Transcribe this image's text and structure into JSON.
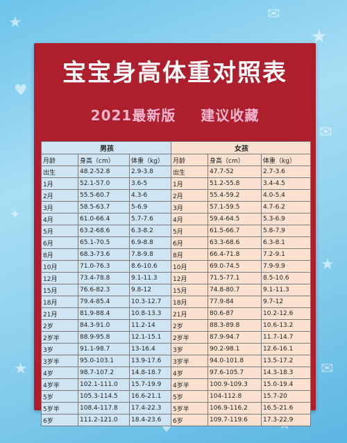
{
  "page": {
    "title": "宝宝身高体重对照表",
    "edition": "2021最新版",
    "tagline": "建议收藏"
  },
  "table": {
    "groups": [
      "男孩",
      "女孩"
    ],
    "headers": {
      "boy": [
        "月龄",
        "身高（cm）",
        "体重（kg）"
      ],
      "girl": [
        "月龄",
        "身高（cm）",
        "体重（kg）"
      ]
    },
    "rows": [
      {
        "boy_age": "出生",
        "boy_height": "48.2-52.8",
        "boy_weight": "2.9-3.8",
        "girl_age": "出生",
        "girl_height": "47.7-52",
        "girl_weight": "2.7-3.6"
      },
      {
        "boy_age": "1月",
        "boy_height": "52.1-57.0",
        "boy_weight": "3.6-5",
        "girl_age": "1月",
        "girl_height": "51.2-55.8",
        "girl_weight": "3.4-4.5"
      },
      {
        "boy_age": "2月",
        "boy_height": "55.5-60.7",
        "boy_weight": "4.3-6",
        "girl_age": "2月",
        "girl_height": "55.4-59.2",
        "girl_weight": "4.0-5.4"
      },
      {
        "boy_age": "3月",
        "boy_height": "58.5-63.7",
        "boy_weight": "5-6.9",
        "girl_age": "3月",
        "girl_height": "57.1-59.5",
        "girl_weight": "4.7-6.2"
      },
      {
        "boy_age": "4月",
        "boy_height": "61.0-66.4",
        "boy_weight": "5.7-7.6",
        "girl_age": "4月",
        "girl_height": "59.4-64.5",
        "girl_weight": "5.3-6.9"
      },
      {
        "boy_age": "5月",
        "boy_height": "63.2-68.6",
        "boy_weight": "6.3-8.2",
        "girl_age": "5月",
        "girl_height": "61.5-66.7",
        "girl_weight": "5.8-7.9"
      },
      {
        "boy_age": "6月",
        "boy_height": "65.1-70.5",
        "boy_weight": "6.9-8.8",
        "girl_age": "6月",
        "girl_height": "63.3-68.6",
        "girl_weight": "6.3-8.1"
      },
      {
        "boy_age": "8月",
        "boy_height": "68.3-73.6",
        "boy_weight": "7.8-9.8",
        "girl_age": "8月",
        "girl_height": "66.4-71.8",
        "girl_weight": "7.2-9.1"
      },
      {
        "boy_age": "10月",
        "boy_height": "71.0-76.3",
        "boy_weight": "8.6-10.6",
        "girl_age": "10月",
        "girl_height": "69.0-74.5",
        "girl_weight": "7.9-9.9"
      },
      {
        "boy_age": "12月",
        "boy_height": "73.4-78.8",
        "boy_weight": "9.1-11.3",
        "girl_age": "12月",
        "girl_height": "71.5-77.1",
        "girl_weight": "8.5-10.6"
      },
      {
        "boy_age": "15月",
        "boy_height": "76.6-82.3",
        "boy_weight": "9.8-12",
        "girl_age": "15月",
        "girl_height": "74.8-80.7",
        "girl_weight": "9.1-11.3"
      },
      {
        "boy_age": "18月",
        "boy_height": "79.4-85.4",
        "boy_weight": "10.3-12.7",
        "girl_age": "18月",
        "girl_height": "77.9-84",
        "girl_weight": "9.7-12"
      },
      {
        "boy_age": "21月",
        "boy_height": "81.9-88.4",
        "boy_weight": "10.8-13.3",
        "girl_age": "21月",
        "girl_height": "80.6-87",
        "girl_weight": "10.2-12.6"
      },
      {
        "boy_age": "2岁",
        "boy_height": "84.3-91.0",
        "boy_weight": "11.2-14",
        "girl_age": "2岁",
        "girl_height": "88.3-89.8",
        "girl_weight": "10.6-13.2"
      },
      {
        "boy_age": "2岁半",
        "boy_height": "88.9-95.8",
        "boy_weight": "12.1-15.1",
        "girl_age": "2岁半",
        "girl_height": "87.9-94.7",
        "girl_weight": "11.7-14.7"
      },
      {
        "boy_age": "3岁",
        "boy_height": "91.1-98.7",
        "boy_weight": "13-16.4",
        "girl_age": "3岁",
        "girl_height": "90.2-98.1",
        "girl_weight": "12.6-16.1"
      },
      {
        "boy_age": "3岁半",
        "boy_height": "95.0-103.1",
        "boy_weight": "13.9-17.6",
        "girl_age": "3岁半",
        "girl_height": "94.0-101.8",
        "girl_weight": "13.5-17.2"
      },
      {
        "boy_age": "4岁",
        "boy_height": "98.7-107.2",
        "boy_weight": "14.8-18.7",
        "girl_age": "4岁",
        "girl_height": "97.6-105.7",
        "girl_weight": "14.3-18.3"
      },
      {
        "boy_age": "4岁半",
        "boy_height": "102.1-111.0",
        "boy_weight": "15.7-19.9",
        "girl_age": "4岁半",
        "girl_height": "100.9-109.3",
        "girl_weight": "15.0-19.4"
      },
      {
        "boy_age": "5岁",
        "boy_height": "105.3-114.5",
        "boy_weight": "16.6-21.1",
        "girl_age": "5岁",
        "girl_height": "104-112.8",
        "girl_weight": "15.7-20"
      },
      {
        "boy_age": "5岁半",
        "boy_height": "108.4-117.8",
        "boy_weight": "17.4-22.3",
        "girl_age": "5岁半",
        "girl_height": "106.9-116.2",
        "girl_weight": "16.5-21.6"
      },
      {
        "boy_age": "6岁",
        "boy_height": "111.2-121.0",
        "boy_weight": "18.4-23.6",
        "girl_age": "6岁",
        "girl_height": "109.7-119.6",
        "girl_weight": "17.3-22.9"
      }
    ]
  }
}
